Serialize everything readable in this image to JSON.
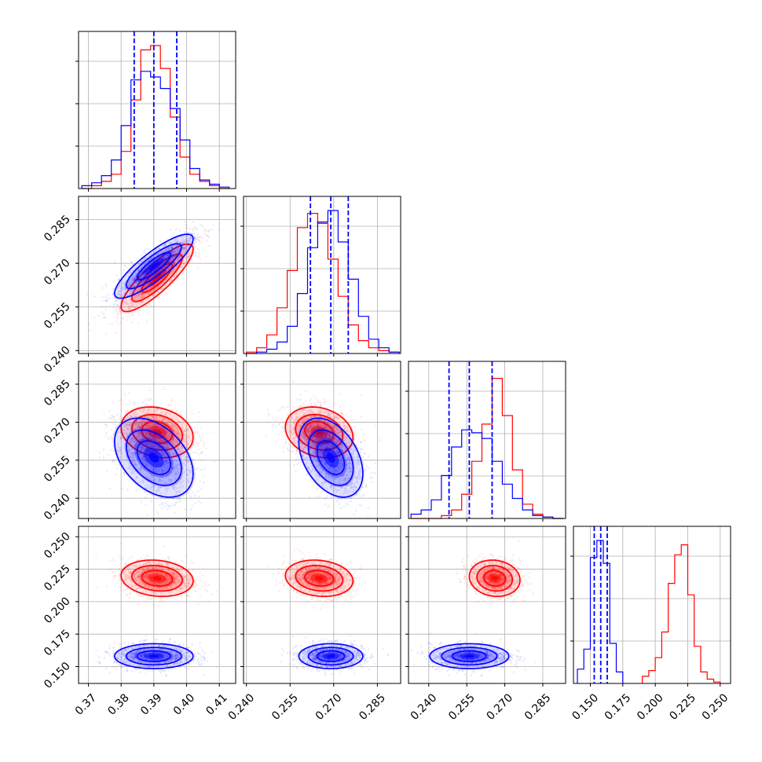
{
  "colors": {
    "series_a": "#ff0000",
    "series_b": "#0000ff",
    "grid": "#b0b0b0"
  },
  "chart_data": {
    "type": "corner",
    "grid": true,
    "parameters": [
      {
        "ticks": [
          "0.37",
          "0.38",
          "0.39",
          "0.40",
          "0.41"
        ],
        "range": [
          0.367,
          0.415
        ]
      },
      {
        "ticks": [
          "0.240",
          "0.255",
          "0.270",
          "0.285"
        ],
        "range": [
          0.239,
          0.293
        ]
      },
      {
        "ticks": [
          "0.240",
          "0.255",
          "0.270",
          "0.285"
        ],
        "range": [
          0.232,
          0.294
        ]
      },
      {
        "ticks": [
          "0.150",
          "0.175",
          "0.200",
          "0.225",
          "0.250"
        ],
        "range": [
          0.137,
          0.258
        ]
      }
    ],
    "series": [
      {
        "color": "#ff0000",
        "mean": [
          0.391,
          0.265,
          0.266,
          0.218
        ],
        "sd": [
          0.0055,
          0.0058,
          0.005,
          0.007
        ],
        "correlations": {
          "1-0": 0.85,
          "2-0": -0.2,
          "2-1": -0.2,
          "3-0": -0.15,
          "3-1": -0.15,
          "3-2": -0.1
        },
        "histograms": [
          {
            "bin_edges": [
              0.368,
              0.371,
              0.374,
              0.377,
              0.38,
              0.383,
              0.386,
              0.389,
              0.392,
              0.395,
              0.398,
              0.401,
              0.404,
              0.407,
              0.41,
              0.413
            ],
            "counts": [
              0,
              0.02,
              0.05,
              0.1,
              0.26,
              0.62,
              0.97,
              1.0,
              0.84,
              0.5,
              0.22,
              0.1,
              0.05,
              0.02,
              0
            ]
          },
          {
            "bin_edges": [
              0.24,
              0.2435,
              0.247,
              0.2505,
              0.254,
              0.2575,
              0.261,
              0.2645,
              0.268,
              0.2715,
              0.275,
              0.2785,
              0.282,
              0.2855,
              0.289,
              0.2925
            ],
            "counts": [
              0.01,
              0.04,
              0.13,
              0.32,
              0.58,
              0.88,
              0.98,
              0.91,
              0.66,
              0.4,
              0.2,
              0.09,
              0.04,
              0.02,
              0.01
            ]
          },
          {
            "bin_edges": [
              0.233,
              0.237,
              0.241,
              0.245,
              0.249,
              0.253,
              0.257,
              0.261,
              0.265,
              0.269,
              0.273,
              0.277,
              0.281,
              0.285,
              0.289,
              0.293
            ],
            "counts": [
              0,
              0,
              0,
              0.02,
              0.06,
              0.17,
              0.4,
              0.66,
              0.98,
              0.72,
              0.34,
              0.1,
              0.03,
              0.01,
              0
            ]
          },
          {
            "bin_edges": [
              0.19,
              0.195,
              0.2,
              0.205,
              0.21,
              0.215,
              0.22,
              0.225,
              0.23,
              0.235,
              0.24,
              0.245,
              0.25
            ],
            "counts": [
              0.05,
              0.09,
              0.18,
              0.36,
              0.7,
              0.9,
              0.97,
              0.62,
              0.26,
              0.08,
              0.03,
              0.01
            ]
          }
        ]
      },
      {
        "color": "#0000ff",
        "mean": [
          0.39,
          0.269,
          0.256,
          0.158
        ],
        "sd": [
          0.006,
          0.0055,
          0.0078,
          0.0048
        ],
        "correlations": {
          "1-0": 0.85,
          "2-0": -0.4,
          "2-1": -0.4,
          "3-0": 0.0,
          "3-1": 0.0,
          "3-2": 0.0
        },
        "quantiles": [
          [
            0.384,
            0.39,
            0.397
          ],
          [
            0.262,
            0.269,
            0.275
          ],
          [
            0.248,
            0.256,
            0.265
          ],
          [
            0.153,
            0.158,
            0.163
          ]
        ],
        "histograms": [
          {
            "bin_edges": [
              0.368,
              0.371,
              0.374,
              0.377,
              0.38,
              0.383,
              0.386,
              0.389,
              0.392,
              0.395,
              0.398,
              0.401,
              0.404,
              0.407,
              0.41,
              0.413
            ],
            "counts": [
              0.02,
              0.04,
              0.09,
              0.2,
              0.44,
              0.76,
              0.82,
              0.78,
              0.7,
              0.56,
              0.34,
              0.14,
              0.06,
              0.03,
              0.01
            ]
          },
          {
            "bin_edges": [
              0.24,
              0.2435,
              0.247,
              0.2505,
              0.254,
              0.2575,
              0.261,
              0.2645,
              0.268,
              0.2715,
              0.275,
              0.2785,
              0.282,
              0.2855,
              0.289,
              0.2925
            ],
            "counts": [
              0,
              0.01,
              0.03,
              0.08,
              0.19,
              0.42,
              0.74,
              0.92,
              1.0,
              0.78,
              0.52,
              0.26,
              0.1,
              0.04,
              0.01
            ]
          },
          {
            "bin_edges": [
              0.233,
              0.237,
              0.241,
              0.245,
              0.249,
              0.253,
              0.257,
              0.261,
              0.265,
              0.269,
              0.273,
              0.277,
              0.281,
              0.285,
              0.289,
              0.293
            ],
            "counts": [
              0.03,
              0.06,
              0.13,
              0.3,
              0.5,
              0.62,
              0.6,
              0.56,
              0.4,
              0.24,
              0.14,
              0.06,
              0.02,
              0.01,
              0
            ]
          },
          {
            "bin_edges": [
              0.14,
              0.145,
              0.15,
              0.155,
              0.16,
              0.165,
              0.17,
              0.175
            ],
            "counts": [
              0.1,
              0.24,
              0.88,
              1.0,
              0.84,
              0.28,
              0.08
            ]
          }
        ]
      }
    ]
  }
}
